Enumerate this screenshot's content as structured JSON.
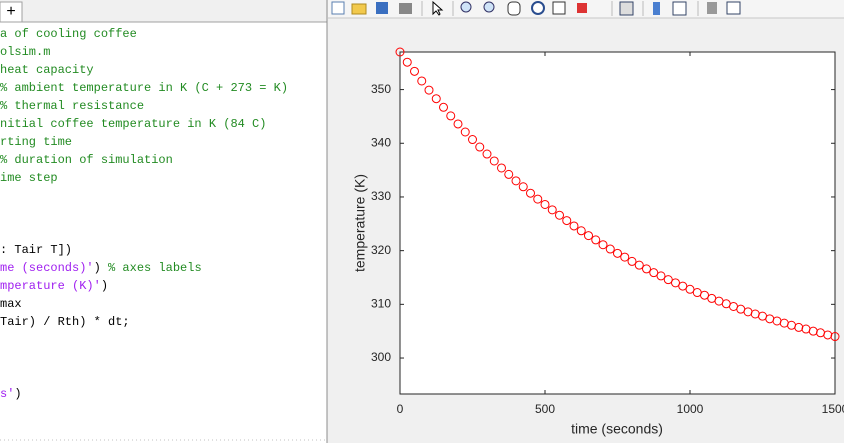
{
  "editor": {
    "tab": "+",
    "lines": [
      [
        {
          "text": "a of cooling coffee",
          "color": "#228b22"
        }
      ],
      [
        {
          "text": "olsim.m",
          "color": "#228b22"
        }
      ],
      [
        {
          "text": " heat capacity",
          "color": "#228b22"
        }
      ],
      [
        {
          "text": "  % ambient temperature in K (C + 273 = K)",
          "color": "#228b22"
        }
      ],
      [
        {
          "text": "  % thermal resistance",
          "color": "#228b22"
        }
      ],
      [
        {
          "text": "nitial coffee temperature in K (84 C)",
          "color": "#228b22"
        }
      ],
      [
        {
          "text": "rting time",
          "color": "#228b22"
        }
      ],
      [
        {
          "text": "   % duration of simulation",
          "color": "#228b22"
        }
      ],
      [
        {
          "text": "ime step",
          "color": "#228b22"
        }
      ],
      [],
      [],
      [],
      [
        {
          "text": ": Tair T])",
          "color": "#000000"
        }
      ],
      [
        {
          "text": "me (seconds)'",
          "color": "#a020f0"
        },
        {
          "text": ") ",
          "color": "#000000"
        },
        {
          "text": "% axes labels",
          "color": "#228b22"
        }
      ],
      [
        {
          "text": "mperature (K)'",
          "color": "#a020f0"
        },
        {
          "text": ")",
          "color": "#000000"
        }
      ],
      [
        {
          "text": "max",
          "color": "#000000"
        }
      ],
      [
        {
          "text": "Tair) / Rth) * dt;",
          "color": "#000000"
        }
      ],
      [],
      [],
      [],
      [
        {
          "text": "s'",
          "color": "#a020f0"
        },
        {
          "text": ")",
          "color": "#000000"
        }
      ]
    ]
  },
  "chart_data": {
    "type": "scatter",
    "xlabel": "time (seconds)",
    "ylabel": "temperature (K)",
    "x": [
      0,
      25,
      50,
      75,
      100,
      125,
      150,
      175,
      200,
      225,
      250,
      275,
      300,
      325,
      350,
      375,
      400,
      425,
      450,
      475,
      500,
      525,
      550,
      575,
      600,
      625,
      650,
      675,
      700,
      725,
      750,
      775,
      800,
      825,
      850,
      875,
      900,
      925,
      950,
      975,
      1000,
      1025,
      1050,
      1075,
      1100,
      1125,
      1150,
      1175,
      1200,
      1225,
      1250,
      1275,
      1300,
      1325,
      1350,
      1375,
      1400,
      1425,
      1450,
      1475,
      1500
    ],
    "series": [
      {
        "color": "#ff0000",
        "marker": "o",
        "values": [
          357.0,
          355.1,
          353.4,
          351.6,
          349.9,
          348.3,
          346.7,
          345.1,
          343.6,
          342.1,
          340.7,
          339.3,
          338.0,
          336.7,
          335.4,
          334.2,
          333.0,
          331.9,
          330.7,
          329.6,
          328.6,
          327.6,
          326.6,
          325.6,
          324.6,
          323.7,
          322.8,
          322.0,
          321.1,
          320.3,
          319.5,
          318.8,
          318.0,
          317.3,
          316.6,
          315.9,
          315.3,
          314.6,
          314.0,
          313.4,
          312.8,
          312.2,
          311.7,
          311.1,
          310.6,
          310.1,
          309.6,
          309.1,
          308.6,
          308.2,
          307.8,
          307.3,
          306.9,
          306.5,
          306.1,
          305.7,
          305.4,
          305.0,
          304.7,
          304.3,
          304.0
        ]
      }
    ],
    "xlim": [
      0,
      1500
    ],
    "ylim": [
      293.3,
      357
    ],
    "xticks": [
      0,
      500,
      1000,
      1500
    ],
    "yticks": [
      300,
      310,
      320,
      330,
      340,
      350
    ],
    "grid": false
  }
}
